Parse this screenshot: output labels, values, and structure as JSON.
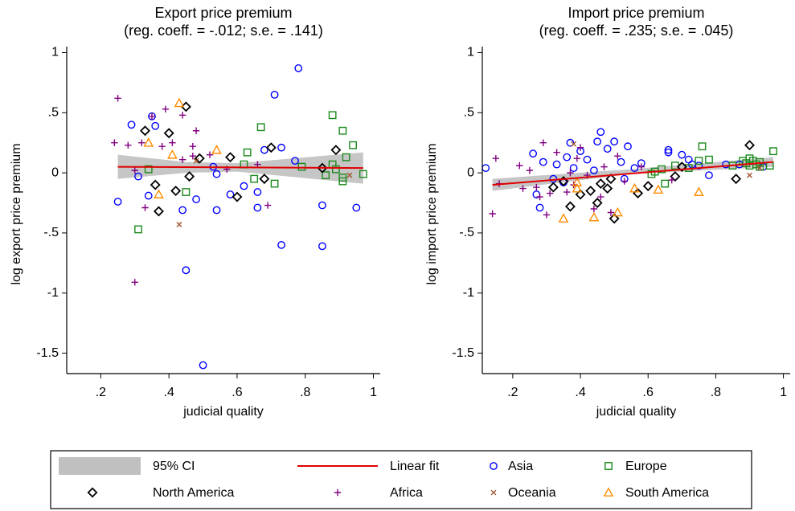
{
  "chart_data": [
    {
      "type": "scatter",
      "title": "Export price premium",
      "subtitle": "(reg. coeff. = -.012; s.e. = .141)",
      "xlabel": "judicial quality",
      "ylabel": "log export price premium",
      "xlim": [
        0.1,
        1.02
      ],
      "ylim": [
        -1.67,
        1.05
      ],
      "xticks": [
        {
          "value": 0.2,
          "label": ".2"
        },
        {
          "value": 0.4,
          "label": ".4"
        },
        {
          "value": 0.6,
          "label": ".6"
        },
        {
          "value": 0.8,
          "label": ".8"
        },
        1
      ],
      "yticks": [
        {
          "value": -1.5,
          "label": "-1.5"
        },
        -1,
        {
          "value": -0.5,
          "label": "-.5"
        },
        0,
        {
          "value": 0.5,
          "label": ".5"
        },
        1
      ],
      "ci": {
        "name": "95% CI",
        "color": "#c0c0c0",
        "x": [
          0.25,
          0.45,
          0.6,
          0.97
        ],
        "lower": [
          -0.05,
          0.0,
          0.01,
          -0.09
        ],
        "upper": [
          0.15,
          0.09,
          0.08,
          0.17
        ]
      },
      "fit": {
        "name": "Linear fit",
        "color": "#e00000",
        "x": [
          0.25,
          0.97
        ],
        "values": [
          0.05,
          0.04
        ]
      },
      "series": [
        {
          "name": "Asia",
          "color": "#0000ff",
          "marker": "circle",
          "x": [
            0.25,
            0.29,
            0.31,
            0.34,
            0.35,
            0.36,
            0.44,
            0.45,
            0.48,
            0.5,
            0.53,
            0.54,
            0.54,
            0.58,
            0.62,
            0.66,
            0.66,
            0.68,
            0.71,
            0.73,
            0.73,
            0.78,
            0.85,
            0.85,
            0.95,
            0.77
          ],
          "y": [
            -0.24,
            0.4,
            -0.03,
            -0.19,
            0.47,
            0.39,
            -0.31,
            -0.81,
            -0.22,
            -1.6,
            0.05,
            -0.01,
            -0.31,
            -0.18,
            -0.11,
            -0.29,
            -0.16,
            0.19,
            0.65,
            0.21,
            -0.6,
            0.87,
            -0.61,
            -0.27,
            -0.29,
            0.1
          ]
        },
        {
          "name": "Europe",
          "color": "#1a8a1a",
          "marker": "square",
          "x": [
            0.31,
            0.34,
            0.45,
            0.62,
            0.63,
            0.65,
            0.67,
            0.71,
            0.79,
            0.86,
            0.88,
            0.88,
            0.89,
            0.91,
            0.91,
            0.92,
            0.94,
            0.97,
            0.91
          ],
          "y": [
            -0.47,
            0.03,
            -0.16,
            0.07,
            0.17,
            -0.05,
            0.38,
            -0.09,
            0.05,
            -0.02,
            0.48,
            0.07,
            0.03,
            -0.04,
            0.35,
            0.13,
            0.23,
            -0.01,
            -0.07
          ]
        },
        {
          "name": "North America",
          "color": "#000000",
          "marker": "diamond",
          "x": [
            0.33,
            0.36,
            0.37,
            0.4,
            0.42,
            0.45,
            0.46,
            0.49,
            0.58,
            0.6,
            0.68,
            0.7,
            0.85,
            0.89
          ],
          "y": [
            0.35,
            -0.1,
            -0.32,
            0.33,
            -0.15,
            0.55,
            -0.03,
            0.12,
            0.13,
            -0.2,
            -0.05,
            0.21,
            0.04,
            0.19
          ]
        },
        {
          "name": "Africa",
          "color": "#800080",
          "marker": "plus",
          "x": [
            0.25,
            0.24,
            0.28,
            0.3,
            0.3,
            0.32,
            0.33,
            0.35,
            0.38,
            0.39,
            0.41,
            0.44,
            0.44,
            0.47,
            0.48,
            0.47,
            0.52,
            0.66,
            0.69,
            0.57
          ],
          "y": [
            0.62,
            0.25,
            0.23,
            0.02,
            -0.91,
            0.25,
            -0.29,
            0.47,
            0.22,
            0.53,
            0.25,
            0.11,
            0.48,
            0.22,
            0.35,
            0.14,
            0.15,
            0.07,
            -0.27,
            0.03
          ]
        },
        {
          "name": "Oceania",
          "color": "#a0522d",
          "marker": "x",
          "x": [
            0.43,
            0.93,
            0.48
          ],
          "y": [
            -0.43,
            -0.02,
            0.1
          ]
        },
        {
          "name": "South America",
          "color": "#ff8c00",
          "marker": "triangle",
          "x": [
            0.34,
            0.37,
            0.43,
            0.41,
            0.54
          ],
          "y": [
            0.25,
            -0.18,
            0.58,
            0.15,
            0.19
          ]
        }
      ]
    },
    {
      "type": "scatter",
      "title": "Import price premium",
      "subtitle": "(reg. coeff. = .235; s.e. = .045)",
      "xlabel": "judicial quality",
      "ylabel": "log import price premium",
      "xlim": [
        0.11,
        1.02
      ],
      "ylim": [
        -1.67,
        1.05
      ],
      "xticks": [
        {
          "value": 0.2,
          "label": ".2"
        },
        {
          "value": 0.4,
          "label": ".4"
        },
        {
          "value": 0.6,
          "label": ".6"
        },
        {
          "value": 0.8,
          "label": ".8"
        },
        1
      ],
      "yticks": [
        {
          "value": -1.5,
          "label": "-1.5"
        },
        -1,
        {
          "value": -0.5,
          "label": "-.5"
        },
        0,
        {
          "value": 0.5,
          "label": ".5"
        },
        1
      ],
      "ci": {
        "color": "#c0c0c0",
        "x": [
          0.14,
          0.55,
          0.97
        ],
        "lower": [
          -0.15,
          -0.01,
          0.05
        ],
        "upper": [
          -0.05,
          0.03,
          0.13
        ]
      },
      "fit": {
        "color": "#e00000",
        "x": [
          0.14,
          0.97
        ],
        "values": [
          -0.1,
          0.09
        ]
      },
      "series": [
        {
          "color": "#0000ff",
          "marker": "circle",
          "x": [
            0.12,
            0.26,
            0.27,
            0.29,
            0.32,
            0.33,
            0.36,
            0.37,
            0.38,
            0.4,
            0.42,
            0.44,
            0.45,
            0.46,
            0.48,
            0.5,
            0.52,
            0.53,
            0.54,
            0.56,
            0.58,
            0.66,
            0.66,
            0.7,
            0.72,
            0.73,
            0.75,
            0.78,
            0.83,
            0.87,
            0.94,
            0.28,
            0.35
          ],
          "y": [
            0.04,
            0.16,
            -0.18,
            0.09,
            -0.05,
            0.07,
            0.13,
            0.25,
            0.04,
            0.18,
            0.11,
            0.02,
            0.26,
            0.34,
            0.2,
            0.26,
            0.09,
            -0.05,
            0.22,
            0.04,
            0.08,
            0.19,
            0.17,
            0.15,
            0.11,
            0.07,
            0.06,
            -0.02,
            0.07,
            0.07,
            0.05,
            -0.29,
            -0.08
          ]
        },
        {
          "color": "#1a8a1a",
          "marker": "square",
          "x": [
            0.61,
            0.62,
            0.64,
            0.65,
            0.68,
            0.72,
            0.75,
            0.76,
            0.78,
            0.85,
            0.88,
            0.89,
            0.9,
            0.9,
            0.91,
            0.92,
            0.93,
            0.97,
            0.96,
            0.93
          ],
          "y": [
            -0.01,
            0.01,
            0.03,
            -0.09,
            0.06,
            0.04,
            0.1,
            0.22,
            0.11,
            0.06,
            0.1,
            0.08,
            0.12,
            0.06,
            0.1,
            0.07,
            0.05,
            0.18,
            0.06,
            0.09
          ]
        },
        {
          "color": "#000000",
          "marker": "diamond",
          "x": [
            0.32,
            0.35,
            0.37,
            0.4,
            0.43,
            0.45,
            0.46,
            0.48,
            0.5,
            0.49,
            0.57,
            0.6,
            0.68,
            0.7,
            0.86,
            0.9
          ],
          "y": [
            -0.12,
            -0.07,
            -0.28,
            -0.18,
            -0.15,
            -0.25,
            -0.09,
            -0.13,
            -0.38,
            -0.05,
            -0.17,
            -0.11,
            -0.03,
            0.05,
            -0.05,
            0.23
          ]
        },
        {
          "color": "#800080",
          "marker": "plus",
          "x": [
            0.14,
            0.15,
            0.16,
            0.22,
            0.23,
            0.25,
            0.27,
            0.28,
            0.29,
            0.3,
            0.31,
            0.33,
            0.36,
            0.37,
            0.38,
            0.39,
            0.4,
            0.42,
            0.44,
            0.46,
            0.47,
            0.49,
            0.51,
            0.53,
            0.58,
            0.67
          ],
          "y": [
            -0.34,
            0.12,
            -0.09,
            0.06,
            -0.13,
            0.02,
            -0.12,
            -0.2,
            0.25,
            -0.35,
            -0.17,
            0.17,
            -0.16,
            0.0,
            -0.1,
            0.12,
            0.21,
            -0.02,
            -0.3,
            -0.2,
            0.05,
            -0.33,
            0.14,
            -0.07,
            0.05,
            -0.06
          ]
        },
        {
          "color": "#a0522d",
          "marker": "x",
          "x": [
            0.38,
            0.9,
            0.93
          ],
          "y": [
            0.24,
            -0.02,
            0.04
          ]
        },
        {
          "color": "#ff8c00",
          "marker": "triangle",
          "x": [
            0.35,
            0.39,
            0.44,
            0.51,
            0.56,
            0.63,
            0.75,
            0.39
          ],
          "y": [
            -0.38,
            -0.08,
            -0.37,
            -0.33,
            -0.13,
            -0.14,
            -0.16,
            -0.13
          ]
        }
      ]
    }
  ]
}
